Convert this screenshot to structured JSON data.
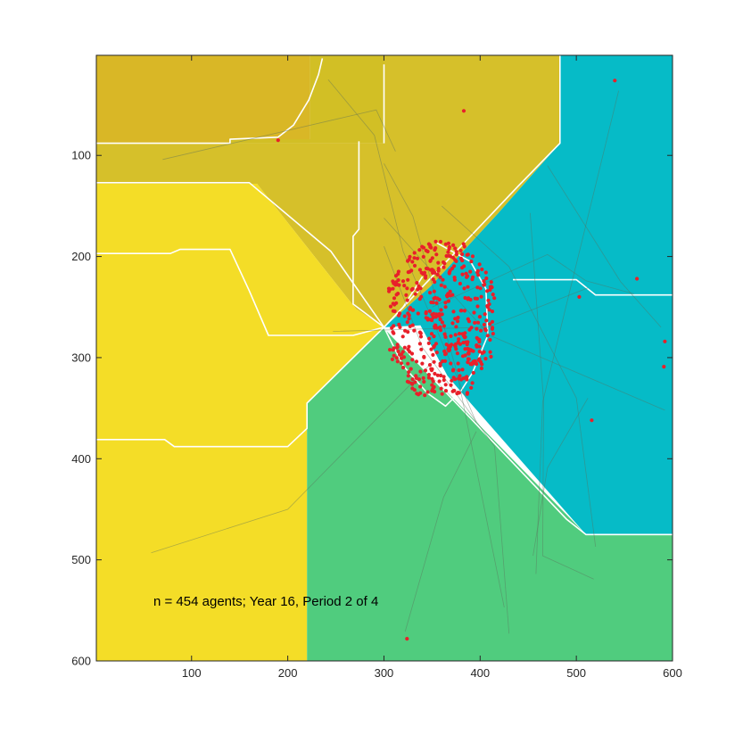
{
  "chart_data": {
    "type": "scatter",
    "title": "",
    "xlabel": "",
    "ylabel": "",
    "xlim": [
      1,
      600
    ],
    "ylim": [
      1,
      600
    ],
    "y_direction": "reversed",
    "grid": false,
    "legend": "none",
    "x_ticks": [
      100,
      200,
      300,
      400,
      500,
      600
    ],
    "y_ticks": [
      100,
      200,
      300,
      400,
      500,
      600
    ],
    "annotation": "n = 454 agents; Year 16, Period 2 of 4",
    "colors": {
      "dark_gold": "#D9B726",
      "olive_gold": "#D2BF25",
      "mustard": "#D6C02A",
      "yellow": "#F4DD27",
      "green": "#50CC7E",
      "cyan": "#06BBC7",
      "agent": "#E8202A",
      "trail": "#5A6E5A",
      "boundary": "#FFFFFF"
    },
    "regions": [
      {
        "color": "dark_gold",
        "polygon": [
          [
            1,
            1
          ],
          [
            223,
            1
          ],
          [
            223,
            88
          ],
          [
            1,
            88
          ]
        ]
      },
      {
        "color": "olive_gold",
        "polygon": [
          [
            223,
            1
          ],
          [
            300,
            1
          ],
          [
            300,
            88
          ],
          [
            140,
            88
          ],
          [
            140,
            84
          ],
          [
            223,
            84
          ]
        ]
      },
      {
        "color": "mustard",
        "polygon": [
          [
            300,
            1
          ],
          [
            483,
            1
          ],
          [
            483,
            88
          ],
          [
            418,
            158
          ],
          [
            348,
            230
          ],
          [
            300,
            270
          ],
          [
            271,
            252
          ],
          [
            168,
            128
          ],
          [
            1,
            128
          ],
          [
            1,
            88
          ],
          [
            300,
            88
          ]
        ]
      },
      {
        "color": "yellow",
        "polygon": [
          [
            1,
            128
          ],
          [
            168,
            128
          ],
          [
            271,
            252
          ],
          [
            300,
            270
          ],
          [
            220,
            345
          ],
          [
            220,
            600
          ],
          [
            1,
            600
          ]
        ]
      },
      {
        "color": "green",
        "polygon": [
          [
            220,
            345
          ],
          [
            300,
            270
          ],
          [
            510,
            475
          ],
          [
            600,
            475
          ],
          [
            600,
            600
          ],
          [
            220,
            600
          ]
        ]
      },
      {
        "color": "cyan",
        "polygon": [
          [
            483,
            1
          ],
          [
            600,
            1
          ],
          [
            600,
            475
          ],
          [
            510,
            475
          ],
          [
            390,
            345
          ],
          [
            366,
            318
          ],
          [
            338,
            268
          ],
          [
            300,
            270
          ],
          [
            348,
            230
          ],
          [
            418,
            158
          ],
          [
            483,
            88
          ]
        ]
      }
    ],
    "boundaries": [
      [
        [
          1,
          88
        ],
        [
          140,
          88
        ],
        [
          140,
          84
        ],
        [
          190,
          82
        ],
        [
          206,
          70
        ],
        [
          222,
          45
        ],
        [
          232,
          20
        ],
        [
          236,
          4
        ]
      ],
      [
        [
          1,
          127
        ],
        [
          160,
          127
        ],
        [
          245,
          195
        ],
        [
          300,
          270
        ]
      ],
      [
        [
          1,
          197
        ],
        [
          78,
          197
        ],
        [
          88,
          193
        ],
        [
          140,
          193
        ],
        [
          160,
          234
        ],
        [
          180,
          278
        ],
        [
          268,
          278
        ],
        [
          300,
          270
        ]
      ],
      [
        [
          1,
          381
        ],
        [
          72,
          381
        ],
        [
          82,
          388
        ],
        [
          200,
          388
        ],
        [
          220,
          370
        ],
        [
          220,
          345
        ],
        [
          300,
          270
        ]
      ],
      [
        [
          300,
          270
        ],
        [
          440,
          130
        ],
        [
          483,
          88
        ],
        [
          483,
          1
        ]
      ],
      [
        [
          274,
          86
        ],
        [
          274,
          173
        ],
        [
          268,
          180
        ],
        [
          268,
          247
        ],
        [
          300,
          270
        ]
      ],
      [
        [
          300,
          270
        ],
        [
          490,
          460
        ],
        [
          510,
          475
        ],
        [
          600,
          475
        ]
      ],
      [
        [
          300,
          10
        ],
        [
          300,
          88
        ]
      ],
      [
        [
          434,
          223
        ],
        [
          500,
          223
        ],
        [
          520,
          238
        ],
        [
          600,
          238
        ]
      ],
      [
        [
          352,
          185
        ],
        [
          390,
          205
        ],
        [
          406,
          232
        ],
        [
          408,
          278
        ],
        [
          392,
          315
        ],
        [
          380,
          333
        ],
        [
          364,
          348
        ],
        [
          345,
          335
        ],
        [
          320,
          308
        ],
        [
          300,
          270
        ],
        [
          320,
          250
        ],
        [
          340,
          220
        ]
      ]
    ],
    "trails": [
      [
        [
          70,
          104
        ],
        [
          292,
          55
        ],
        [
          312,
          96
        ]
      ],
      [
        [
          242,
          25
        ],
        [
          290,
          80
        ],
        [
          320,
          195
        ],
        [
          396,
          364
        ]
      ],
      [
        [
          58,
          493
        ],
        [
          200,
          450
        ],
        [
          352,
          303
        ]
      ],
      [
        [
          300,
          108
        ],
        [
          330,
          160
        ],
        [
          376,
          315
        ],
        [
          425,
          547
        ]
      ],
      [
        [
          300,
          162
        ],
        [
          410,
          278
        ],
        [
          592,
          352
        ]
      ],
      [
        [
          300,
          190
        ],
        [
          340,
          290
        ],
        [
          415,
          388
        ],
        [
          430,
          573
        ]
      ],
      [
        [
          350,
          250
        ],
        [
          470,
          198
        ],
        [
          510,
          224
        ],
        [
          560,
          237
        ]
      ],
      [
        [
          452,
          157
        ],
        [
          466,
          344
        ],
        [
          465,
          496
        ],
        [
          518,
          519
        ]
      ],
      [
        [
          470,
          110
        ],
        [
          546,
          225
        ],
        [
          588,
          270
        ]
      ],
      [
        [
          544,
          36
        ],
        [
          465,
          344
        ],
        [
          458,
          514
        ]
      ],
      [
        [
          512,
          340
        ],
        [
          470,
          409
        ],
        [
          455,
          496
        ]
      ],
      [
        [
          247,
          274
        ],
        [
          408,
          270
        ],
        [
          512,
          231
        ]
      ],
      [
        [
          322,
          571
        ],
        [
          362,
          438
        ],
        [
          396,
          373
        ]
      ],
      [
        [
          360,
          150
        ],
        [
          430,
          210
        ],
        [
          500,
          340
        ],
        [
          520,
          487
        ]
      ]
    ],
    "isolated_agents": [
      [
        190,
        85
      ],
      [
        383,
        56
      ],
      [
        540,
        26
      ],
      [
        563,
        222
      ],
      [
        503,
        240
      ],
      [
        592,
        284
      ],
      [
        591,
        309
      ],
      [
        516,
        362
      ],
      [
        324,
        578
      ]
    ],
    "cluster": {
      "n": 445,
      "bounds": {
        "x": [
          305,
          415
        ],
        "y": [
          185,
          340
        ]
      },
      "dense_spots": [
        [
          390,
          304
        ],
        [
          398,
          305
        ],
        [
          370,
          290
        ],
        [
          355,
          270
        ]
      ]
    }
  }
}
